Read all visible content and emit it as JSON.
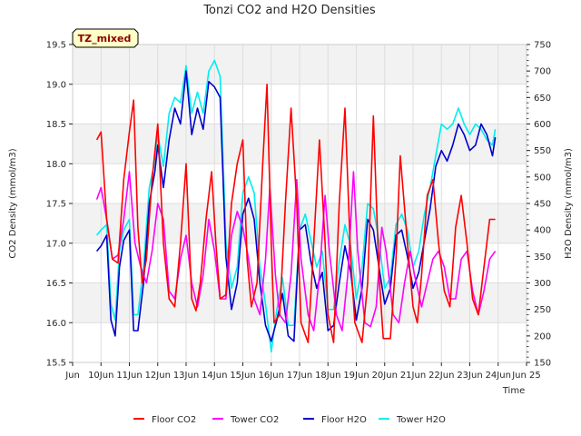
{
  "chart_data": {
    "type": "line",
    "title": "Tonzi CO2 and H2O Densities",
    "xlabel": "Time",
    "ylabel_left": "CO2 Density (mmol/m3)",
    "ylabel_right": "H2O Density (mmol/m3)",
    "badge": "TZ_mixed",
    "xlim": [
      9,
      25
    ],
    "ylim_left": [
      15.5,
      19.5
    ],
    "ylim_right": [
      150,
      750
    ],
    "x_ticks": [
      {
        "x": 9,
        "label": "Jun"
      },
      {
        "x": 10,
        "label": "10Jun"
      },
      {
        "x": 11,
        "label": "11Jun"
      },
      {
        "x": 12,
        "label": "12Jun"
      },
      {
        "x": 13,
        "label": "13Jun"
      },
      {
        "x": 14,
        "label": "14Jun"
      },
      {
        "x": 15,
        "label": "15Jun"
      },
      {
        "x": 16,
        "label": "16Jun"
      },
      {
        "x": 17,
        "label": "17Jun"
      },
      {
        "x": 18,
        "label": "18Jun"
      },
      {
        "x": 19,
        "label": "19Jun"
      },
      {
        "x": 20,
        "label": "20Jun"
      },
      {
        "x": 21,
        "label": "21Jun"
      },
      {
        "x": 22,
        "label": "22Jun"
      },
      {
        "x": 23,
        "label": "23Jun"
      },
      {
        "x": 24,
        "label": "24Jun"
      },
      {
        "x": 25,
        "label": "Jun 25"
      }
    ],
    "y_left_ticks": [
      "15.5",
      "16.0",
      "16.5",
      "17.0",
      "17.5",
      "18.0",
      "18.5",
      "19.0",
      "19.5"
    ],
    "y_right_ticks": [
      "150",
      "200",
      "250",
      "300",
      "350",
      "400",
      "450",
      "500",
      "550",
      "600",
      "650",
      "700",
      "750"
    ],
    "grid": true,
    "legend_position": "bottom",
    "series": [
      {
        "name": "Floor CO2",
        "axis": "left",
        "color": "#ff0000",
        "x": [
          9.85,
          10.0,
          10.2,
          10.4,
          10.6,
          10.8,
          11.0,
          11.15,
          11.3,
          11.45,
          11.6,
          11.8,
          12.0,
          12.2,
          12.4,
          12.6,
          12.8,
          13.0,
          13.2,
          13.35,
          13.5,
          13.7,
          13.9,
          14.05,
          14.2,
          14.4,
          14.6,
          14.8,
          15.0,
          15.15,
          15.3,
          15.5,
          15.7,
          15.85,
          16.0,
          16.1,
          16.3,
          16.5,
          16.7,
          16.9,
          17.05,
          17.3,
          17.5,
          17.7,
          17.9,
          18.0,
          18.2,
          18.4,
          18.6,
          18.8,
          18.95,
          19.2,
          19.4,
          19.6,
          19.8,
          19.95,
          20.2,
          20.4,
          20.55,
          20.8,
          21.0,
          21.15,
          21.3,
          21.5,
          21.7,
          21.9,
          22.1,
          22.3,
          22.5,
          22.7,
          22.9,
          23.1,
          23.3,
          23.5,
          23.7,
          23.9
        ],
        "y": [
          18.3,
          18.4,
          17.3,
          16.8,
          16.75,
          17.8,
          18.4,
          18.8,
          17.2,
          16.5,
          16.8,
          17.8,
          18.5,
          17.0,
          16.3,
          16.2,
          17.0,
          18.0,
          16.3,
          16.15,
          16.5,
          17.3,
          17.9,
          17.0,
          16.3,
          16.35,
          17.5,
          18.0,
          18.3,
          16.8,
          16.2,
          16.5,
          18.0,
          19.0,
          17.0,
          16.0,
          16.1,
          17.5,
          18.7,
          17.5,
          16.0,
          15.75,
          17.0,
          18.3,
          17.0,
          16.1,
          15.75,
          17.5,
          18.7,
          16.8,
          16.0,
          15.75,
          16.5,
          18.6,
          16.6,
          15.8,
          15.8,
          16.8,
          18.1,
          17.0,
          16.2,
          16.0,
          16.6,
          17.6,
          17.8,
          17.0,
          16.4,
          16.2,
          17.2,
          17.6,
          17.0,
          16.3,
          16.1,
          16.7,
          17.3,
          17.3
        ]
      },
      {
        "name": "Tower CO2",
        "axis": "left",
        "color": "#ff00ff",
        "x": [
          9.85,
          10.0,
          10.2,
          10.4,
          10.6,
          10.8,
          11.0,
          11.2,
          11.4,
          11.6,
          11.8,
          12.0,
          12.2,
          12.4,
          12.6,
          12.8,
          13.0,
          13.2,
          13.4,
          13.6,
          13.8,
          14.0,
          14.2,
          14.4,
          14.6,
          14.8,
          15.0,
          15.2,
          15.4,
          15.6,
          15.8,
          15.95,
          16.15,
          16.3,
          16.5,
          16.7,
          16.9,
          17.05,
          17.3,
          17.5,
          17.7,
          17.9,
          18.05,
          18.3,
          18.5,
          18.7,
          18.9,
          19.05,
          19.3,
          19.5,
          19.7,
          19.9,
          20.05,
          20.3,
          20.5,
          20.7,
          20.9,
          21.05,
          21.3,
          21.5,
          21.7,
          21.9,
          22.1,
          22.3,
          22.5,
          22.7,
          22.9,
          23.1,
          23.3,
          23.5,
          23.7,
          23.9
        ],
        "y": [
          17.55,
          17.7,
          17.3,
          16.8,
          16.85,
          17.3,
          17.9,
          17.0,
          16.7,
          16.5,
          16.9,
          17.5,
          17.3,
          16.4,
          16.3,
          16.8,
          17.1,
          16.5,
          16.2,
          16.6,
          17.3,
          16.9,
          16.3,
          16.3,
          17.1,
          17.4,
          17.2,
          16.8,
          16.3,
          16.1,
          16.8,
          17.7,
          16.6,
          16.1,
          16.0,
          16.6,
          17.8,
          16.8,
          16.1,
          15.9,
          16.6,
          17.6,
          16.9,
          16.1,
          15.9,
          16.6,
          17.9,
          16.9,
          16.0,
          15.95,
          16.2,
          17.2,
          16.9,
          16.1,
          16.0,
          16.5,
          16.9,
          16.6,
          16.2,
          16.5,
          16.8,
          16.9,
          16.7,
          16.3,
          16.3,
          16.8,
          16.9,
          16.4,
          16.1,
          16.4,
          16.8,
          16.9
        ]
      },
      {
        "name": "Floor H2O",
        "axis": "right",
        "color": "#0000cc",
        "x": [
          9.85,
          10.0,
          10.2,
          10.35,
          10.5,
          10.65,
          10.8,
          11.0,
          11.15,
          11.3,
          11.5,
          11.7,
          11.9,
          12.0,
          12.2,
          12.4,
          12.6,
          12.8,
          13.0,
          13.2,
          13.4,
          13.6,
          13.8,
          14.0,
          14.2,
          14.4,
          14.6,
          14.8,
          15.0,
          15.2,
          15.4,
          15.6,
          15.8,
          16.0,
          16.2,
          16.4,
          16.6,
          16.8,
          17.0,
          17.2,
          17.4,
          17.6,
          17.8,
          18.0,
          18.2,
          18.4,
          18.6,
          18.8,
          19.0,
          19.2,
          19.4,
          19.6,
          19.8,
          20.0,
          20.2,
          20.4,
          20.6,
          20.8,
          21.0,
          21.2,
          21.4,
          21.6,
          21.8,
          22.0,
          22.2,
          22.4,
          22.6,
          22.8,
          23.0,
          23.2,
          23.4,
          23.6,
          23.8,
          23.9
        ],
        "y": [
          360,
          370,
          390,
          230,
          200,
          330,
          380,
          400,
          210,
          210,
          300,
          450,
          510,
          560,
          480,
          570,
          630,
          600,
          700,
          580,
          630,
          590,
          680,
          670,
          650,
          350,
          250,
          300,
          430,
          460,
          420,
          300,
          220,
          190,
          230,
          280,
          200,
          190,
          400,
          410,
          340,
          290,
          320,
          210,
          220,
          300,
          370,
          320,
          230,
          290,
          420,
          400,
          330,
          260,
          290,
          390,
          400,
          350,
          290,
          320,
          380,
          440,
          520,
          550,
          530,
          560,
          600,
          580,
          550,
          560,
          600,
          580,
          540,
          575
        ]
      },
      {
        "name": "Tower H2O",
        "axis": "right",
        "color": "#00eeee",
        "x": [
          9.85,
          10.0,
          10.2,
          10.35,
          10.5,
          10.65,
          10.8,
          11.0,
          11.15,
          11.3,
          11.5,
          11.7,
          11.9,
          12.0,
          12.2,
          12.4,
          12.6,
          12.8,
          13.0,
          13.2,
          13.4,
          13.6,
          13.8,
          14.0,
          14.2,
          14.4,
          14.6,
          14.8,
          15.0,
          15.2,
          15.4,
          15.6,
          15.8,
          16.0,
          16.2,
          16.4,
          16.6,
          16.8,
          17.0,
          17.2,
          17.4,
          17.6,
          17.8,
          18.0,
          18.2,
          18.4,
          18.6,
          18.8,
          19.0,
          19.2,
          19.4,
          19.6,
          19.8,
          20.0,
          20.2,
          20.4,
          20.6,
          20.8,
          21.0,
          21.2,
          21.4,
          21.6,
          21.8,
          22.0,
          22.2,
          22.4,
          22.6,
          22.8,
          23.0,
          23.2,
          23.4,
          23.6,
          23.8,
          23.9
        ],
        "y": [
          390,
          400,
          410,
          260,
          230,
          360,
          400,
          420,
          240,
          240,
          330,
          480,
          530,
          580,
          520,
          620,
          650,
          640,
          710,
          620,
          660,
          620,
          700,
          720,
          690,
          380,
          290,
          330,
          470,
          500,
          470,
          330,
          260,
          170,
          250,
          310,
          220,
          220,
          400,
          430,
          380,
          330,
          360,
          250,
          250,
          340,
          410,
          370,
          270,
          330,
          450,
          440,
          380,
          290,
          310,
          410,
          430,
          400,
          330,
          360,
          430,
          480,
          540,
          600,
          590,
          600,
          630,
          600,
          580,
          600,
          590,
          570,
          560,
          590
        ]
      }
    ]
  }
}
